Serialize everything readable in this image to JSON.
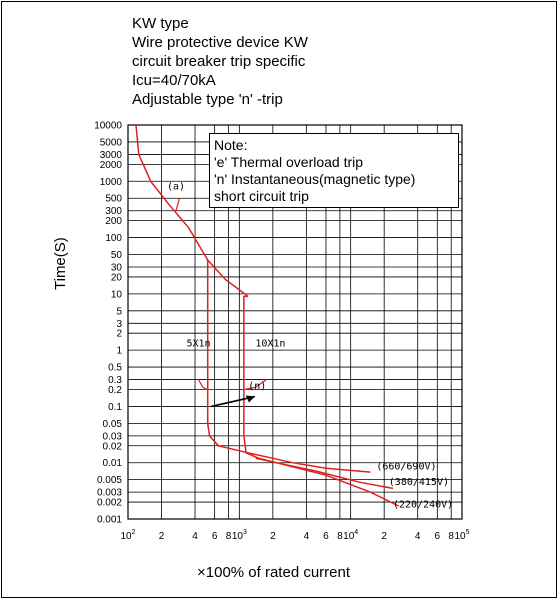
{
  "header": {
    "lines": [
      "KW  type",
      "Wire protective device KW",
      "circuit breaker trip specific",
      "Icu=40/70kA",
      "Adjustable type 'n' -trip"
    ]
  },
  "note": {
    "lines": [
      "Note:",
      "'e' Thermal overload trip",
      "'n' Instantaneous(magnetic type)",
      "short circuit trip"
    ]
  },
  "chart_data": {
    "type": "line",
    "xlabel": "×100% of rated current",
    "ylabel": "Time(S)",
    "x_scale": "log",
    "y_scale": "log",
    "xlim": [
      100,
      100000
    ],
    "ylim": [
      0.001,
      10000
    ],
    "x_ticks": [
      {
        "v": 100,
        "b": "10",
        "e": "2"
      },
      {
        "v": 200,
        "b": "2",
        "e": ""
      },
      {
        "v": 400,
        "b": "4",
        "e": ""
      },
      {
        "v": 600,
        "b": "6",
        "e": ""
      },
      {
        "v": 800,
        "b": "8",
        "e": ""
      },
      {
        "v": 1000,
        "b": "10",
        "e": "3"
      },
      {
        "v": 2000,
        "b": "2",
        "e": ""
      },
      {
        "v": 4000,
        "b": "4",
        "e": ""
      },
      {
        "v": 6000,
        "b": "6",
        "e": ""
      },
      {
        "v": 8000,
        "b": "8",
        "e": ""
      },
      {
        "v": 10000,
        "b": "10",
        "e": "4"
      },
      {
        "v": 20000,
        "b": "2",
        "e": ""
      },
      {
        "v": 40000,
        "b": "4",
        "e": ""
      },
      {
        "v": 60000,
        "b": "6",
        "e": ""
      },
      {
        "v": 80000,
        "b": "8",
        "e": ""
      },
      {
        "v": 100000,
        "b": "10",
        "e": "5"
      }
    ],
    "y_ticks": [
      {
        "v": 10000,
        "l": "10000"
      },
      {
        "v": 5000,
        "l": "5000"
      },
      {
        "v": 3000,
        "l": "3000"
      },
      {
        "v": 2000,
        "l": "2000"
      },
      {
        "v": 1000,
        "l": "1000"
      },
      {
        "v": 500,
        "l": "500"
      },
      {
        "v": 300,
        "l": "300"
      },
      {
        "v": 200,
        "l": "200"
      },
      {
        "v": 100,
        "l": "100"
      },
      {
        "v": 50,
        "l": "50"
      },
      {
        "v": 30,
        "l": "30"
      },
      {
        "v": 20,
        "l": "20"
      },
      {
        "v": 10,
        "l": "10"
      },
      {
        "v": 5,
        "l": "5"
      },
      {
        "v": 3,
        "l": "3"
      },
      {
        "v": 2,
        "l": "2"
      },
      {
        "v": 1,
        "l": "1"
      },
      {
        "v": 0.5,
        "l": "0.5"
      },
      {
        "v": 0.3,
        "l": "0.3"
      },
      {
        "v": 0.2,
        "l": "0.2"
      },
      {
        "v": 0.1,
        "l": "0.1"
      },
      {
        "v": 0.05,
        "l": "0.05"
      },
      {
        "v": 0.03,
        "l": "0.03"
      },
      {
        "v": 0.02,
        "l": "0.02"
      },
      {
        "v": 0.01,
        "l": "0.01"
      },
      {
        "v": 0.005,
        "l": "0.005"
      },
      {
        "v": 0.003,
        "l": "0.003"
      },
      {
        "v": 0.002,
        "l": "0.002"
      },
      {
        "v": 0.001,
        "l": "0.001"
      }
    ],
    "series": [
      {
        "name": "(a)",
        "color": "#e02020",
        "points": [
          [
            118,
            10000
          ],
          [
            125,
            3000
          ],
          [
            160,
            1000
          ],
          [
            230,
            400
          ],
          [
            350,
            150
          ],
          [
            520,
            40
          ],
          [
            750,
            18
          ],
          [
            1200,
            9
          ]
        ]
      },
      {
        "name": "5X1n",
        "color": "#e02020",
        "points": [
          [
            520,
            40
          ],
          [
            520,
            0.05
          ],
          [
            540,
            0.03
          ],
          [
            650,
            0.02
          ],
          [
            1200,
            0.015
          ]
        ]
      },
      {
        "name": "10X1n",
        "color": "#e02020",
        "points": [
          [
            1200,
            9
          ],
          [
            1100,
            9
          ],
          [
            1100,
            0.03
          ],
          [
            1150,
            0.015
          ],
          [
            1500,
            0.012
          ]
        ]
      },
      {
        "name": "(660/690V)",
        "color": "#e02020",
        "points": [
          [
            1200,
            0.015
          ],
          [
            3000,
            0.01
          ],
          [
            6000,
            0.008
          ],
          [
            15000,
            0.0068
          ]
        ]
      },
      {
        "name": "(380/415V)",
        "color": "#e02020",
        "points": [
          [
            1400,
            0.012
          ],
          [
            5000,
            0.007
          ],
          [
            12000,
            0.0045
          ],
          [
            24000,
            0.0035
          ]
        ]
      },
      {
        "name": "(220/240V)",
        "color": "#e02020",
        "points": [
          [
            1500,
            0.012
          ],
          [
            6000,
            0.006
          ],
          [
            15000,
            0.003
          ],
          [
            27000,
            0.0017
          ]
        ]
      }
    ],
    "annotations": [
      {
        "id": "a",
        "text": "(a)",
        "x": 270,
        "y": 800
      },
      {
        "id": "5x",
        "text": "5X1n",
        "x": 430,
        "y": 1.3
      },
      {
        "id": "10x",
        "text": "10X1n",
        "x": 1900,
        "y": 1.3
      },
      {
        "id": "n",
        "text": "(n)",
        "x": 1450,
        "y": 0.23
      },
      {
        "id": "v660",
        "text": "(660/690V)",
        "x": 17000,
        "y": 0.0085
      },
      {
        "id": "v380",
        "text": "(380/415V)",
        "x": 22000,
        "y": 0.0045
      },
      {
        "id": "v220",
        "text": "(220/240V)",
        "x": 24000,
        "y": 0.0018
      }
    ],
    "grid": true
  }
}
